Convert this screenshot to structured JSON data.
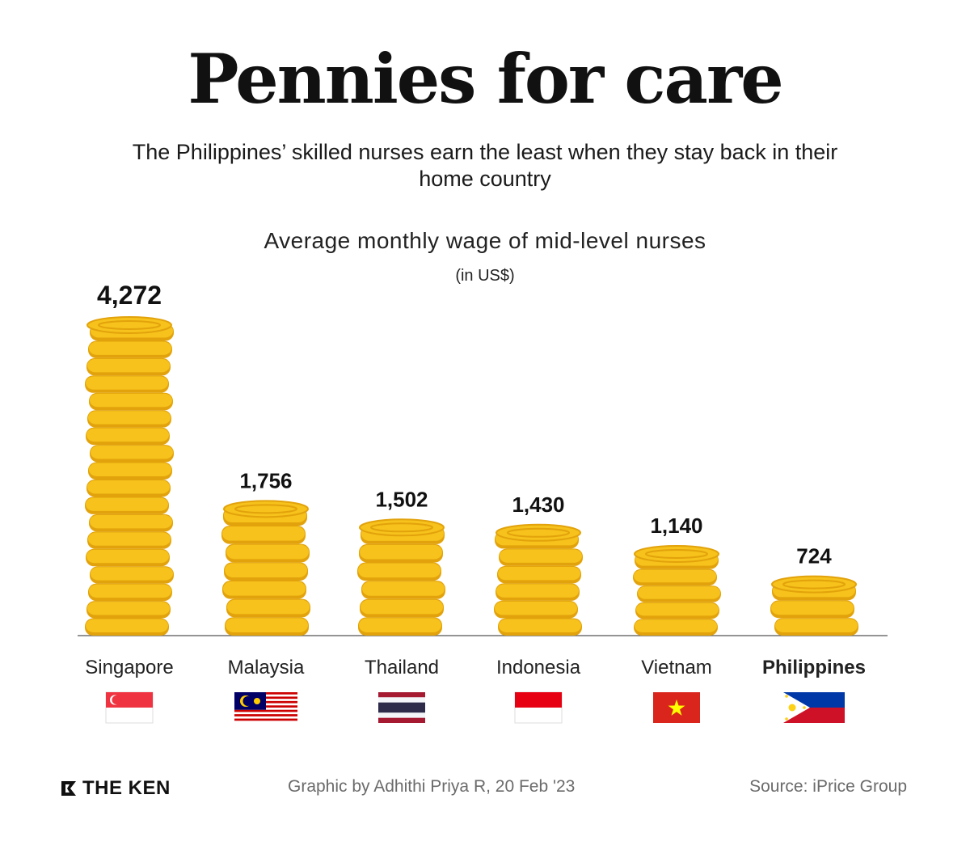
{
  "title": "Pennies for care",
  "subtitle": "The Philippines’ skilled nurses earn the least when they stay back in their home country",
  "chart_data": {
    "type": "bar",
    "title": "Average monthly wage of mid-level nurses",
    "unit": "(in US$)",
    "categories": [
      "Singapore",
      "Malaysia",
      "Thailand",
      "Indonesia",
      "Vietnam",
      "Philippines"
    ],
    "values": [
      4272,
      1756,
      1502,
      1430,
      1140,
      724
    ],
    "value_labels": [
      "4,272",
      "1,756",
      "1,502",
      "1,430",
      "1,140",
      "724"
    ],
    "highlight": "Philippines",
    "ylim": [
      0,
      4272
    ],
    "grid": false,
    "coin_color": "#F6C21B",
    "coin_edge_color": "#E2A20B"
  },
  "flags": [
    "singapore-flag",
    "malaysia-flag",
    "thailand-flag",
    "indonesia-flag",
    "vietnam-flag",
    "philippines-flag"
  ],
  "footer": {
    "brand": "THE KEN",
    "credit": "Graphic by Adhithi Priya R, 20 Feb '23",
    "source": "Source: iPrice Group"
  }
}
